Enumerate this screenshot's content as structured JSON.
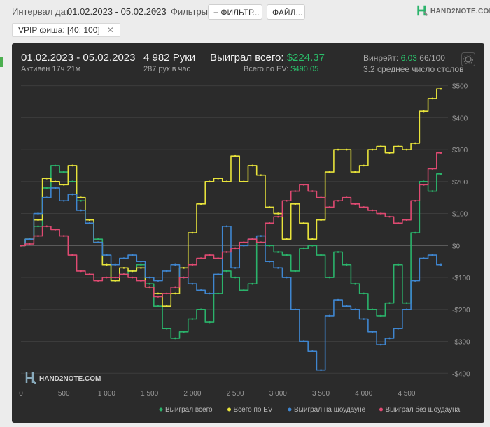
{
  "filters_bar": {
    "date_label": "Интервал дат:",
    "date_value": "01.02.2023 - 05.02.2023",
    "filters_label": "Фильтры:",
    "filter_button": "+ ФИЛЬТР...",
    "file_button": "ФАЙЛ...",
    "active_filter": "VPIP фиша: [40; 100]",
    "close_glyph": "✕"
  },
  "brand": {
    "name": "HAND2NOTE.COM"
  },
  "stats": {
    "date_range": "01.02.2023 - 05.02.2023",
    "active": "Активен 17ч 21м",
    "hands": "4 982 Руки",
    "hands_per_hour": "287 рук в час",
    "won_label": "Выиграл всего:",
    "won_value": "$224.37",
    "ev_label": "Всего по EV:",
    "ev_value": "$490.05",
    "winrate_label": "Винрейт:",
    "winrate_value": "6.03",
    "winrate_unit": "66/100",
    "tables": "3.2 среднее число столов"
  },
  "chart_data": {
    "type": "line",
    "x": [
      0,
      100,
      200,
      300,
      400,
      500,
      600,
      700,
      800,
      900,
      1000,
      1100,
      1200,
      1300,
      1400,
      1500,
      1600,
      1700,
      1800,
      1900,
      2000,
      2100,
      2200,
      2300,
      2400,
      2500,
      2600,
      2700,
      2800,
      2900,
      3000,
      3100,
      3200,
      3300,
      3400,
      3500,
      3600,
      3700,
      3800,
      3900,
      4000,
      4100,
      4200,
      4300,
      4400,
      4500,
      4600,
      4700,
      4800,
      4900
    ],
    "xticks": [
      0,
      500,
      1000,
      1500,
      2000,
      2500,
      3000,
      3500,
      4000,
      4500
    ],
    "xtick_labels": [
      "0",
      "500",
      "1 000",
      "1 500",
      "2 000",
      "2 500",
      "3 000",
      "3 500",
      "4 000",
      "4 500"
    ],
    "xlim": [
      0,
      4982
    ],
    "yticks": [
      500,
      400,
      300,
      200,
      100,
      0,
      -100,
      -200,
      -300,
      -400
    ],
    "ytick_labels": [
      "$500",
      "$400",
      "$300",
      "$200",
      "$100",
      "$0",
      "-$100",
      "-$200",
      "-$300",
      "-$400"
    ],
    "ylim": [
      -430,
      510
    ],
    "grid": true,
    "legend_position": "bottom-right",
    "series": [
      {
        "name": "Выиграл всего",
        "color": "#2bb36b",
        "values": [
          0,
          20,
          60,
          180,
          250,
          230,
          200,
          140,
          80,
          20,
          -60,
          -110,
          -90,
          -80,
          -60,
          -120,
          -190,
          -260,
          -290,
          -270,
          -230,
          -200,
          -240,
          -150,
          -80,
          -100,
          -140,
          -120,
          10,
          0,
          -20,
          -30,
          -80,
          -10,
          0,
          -30,
          -100,
          -20,
          -60,
          -120,
          -150,
          -200,
          -220,
          -180,
          -60,
          -180,
          40,
          200,
          170,
          224
        ]
      },
      {
        "name": "Всего по EV",
        "color": "#e8e33b",
        "values": [
          0,
          20,
          80,
          210,
          200,
          190,
          250,
          150,
          80,
          10,
          -60,
          -110,
          -70,
          -80,
          -70,
          -130,
          -150,
          -190,
          -150,
          -70,
          40,
          130,
          200,
          210,
          200,
          280,
          200,
          250,
          220,
          120,
          100,
          20,
          130,
          70,
          20,
          80,
          230,
          300,
          300,
          230,
          250,
          300,
          310,
          290,
          310,
          300,
          320,
          420,
          460,
          490
        ]
      },
      {
        "name": "Выиграл на шоудауне",
        "color": "#3f86d0",
        "values": [
          0,
          20,
          100,
          150,
          180,
          140,
          160,
          110,
          70,
          10,
          -30,
          -60,
          -40,
          -30,
          -50,
          -100,
          -110,
          -80,
          -60,
          -100,
          -120,
          -140,
          -150,
          -90,
          60,
          -70,
          0,
          20,
          30,
          -50,
          -70,
          -100,
          -200,
          -300,
          -330,
          -390,
          -220,
          -170,
          -190,
          -200,
          -230,
          -270,
          -310,
          -290,
          -260,
          -200,
          -110,
          -40,
          -30,
          -60
        ]
      },
      {
        "name": "Выиграл без шоудауна",
        "color": "#e04a72",
        "values": [
          0,
          5,
          30,
          60,
          50,
          30,
          -30,
          -80,
          -90,
          -110,
          -100,
          -100,
          -90,
          -100,
          -110,
          -130,
          -160,
          -150,
          -130,
          -100,
          -60,
          -40,
          -30,
          -40,
          -20,
          -10,
          10,
          20,
          10,
          70,
          90,
          140,
          170,
          190,
          170,
          150,
          120,
          140,
          150,
          130,
          120,
          110,
          100,
          90,
          70,
          80,
          140,
          190,
          240,
          290
        ]
      }
    ]
  }
}
